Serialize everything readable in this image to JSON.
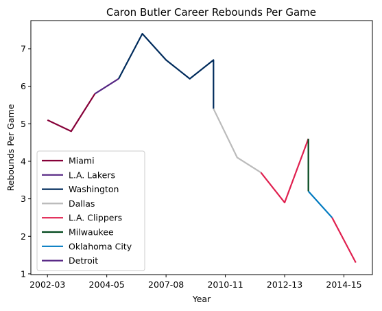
{
  "chart_data": {
    "type": "line",
    "title": "Caron Butler Career Rebounds Per Game",
    "xlabel": "Year",
    "ylabel": "Rebounds Per Game",
    "xlim": [
      -0.7,
      13.7
    ],
    "ylim": [
      0.98,
      7.75
    ],
    "x_ticks": [
      {
        "index": 0,
        "label": "2002-03"
      },
      {
        "index": 2.5,
        "label": "2004-05"
      },
      {
        "index": 5,
        "label": "2007-08"
      },
      {
        "index": 7.5,
        "label": "2010-11"
      },
      {
        "index": 10,
        "label": "2012-13"
      },
      {
        "index": 12.5,
        "label": "2014-15"
      }
    ],
    "y_ticks": [
      1,
      2,
      3,
      4,
      5,
      6,
      7
    ],
    "grid": false,
    "legend_position": "lower left",
    "series": [
      {
        "name": "Miami",
        "color": "#860038",
        "x": [
          0,
          1,
          2
        ],
        "y": [
          5.1,
          4.8,
          5.8
        ]
      },
      {
        "name": "L.A. Lakers",
        "color": "#552583",
        "x": [
          2,
          3
        ],
        "y": [
          5.8,
          6.2
        ]
      },
      {
        "name": "Washington",
        "color": "#002B5C",
        "x": [
          3,
          4,
          5,
          6,
          7,
          7
        ],
        "y": [
          6.2,
          7.4,
          6.7,
          6.2,
          6.7,
          5.4
        ]
      },
      {
        "name": "Dallas",
        "color": "#BBBBBB",
        "x": [
          7,
          8,
          9
        ],
        "y": [
          5.4,
          4.1,
          3.7
        ]
      },
      {
        "name": "L.A. Clippers",
        "color": "#E0204F",
        "x": [
          9,
          10,
          11,
          11
        ],
        "y": [
          3.7,
          2.9,
          4.6,
          4.6
        ]
      },
      {
        "name": "Milwaukee",
        "color": "#00471B",
        "x": [
          11,
          11
        ],
        "y": [
          4.6,
          3.2
        ]
      },
      {
        "name": "Oklahoma City",
        "color": "#007AC1",
        "x": [
          11,
          12
        ],
        "y": [
          3.2,
          2.5
        ]
      },
      {
        "name": "Detroit",
        "color": "#552583",
        "x": [],
        "y": []
      }
    ],
    "extra_segments": [
      {
        "series": "L.A. Clippers",
        "color": "#E0204F",
        "x": [
          12,
          13
        ],
        "y": [
          2.5,
          1.3
        ]
      }
    ]
  }
}
